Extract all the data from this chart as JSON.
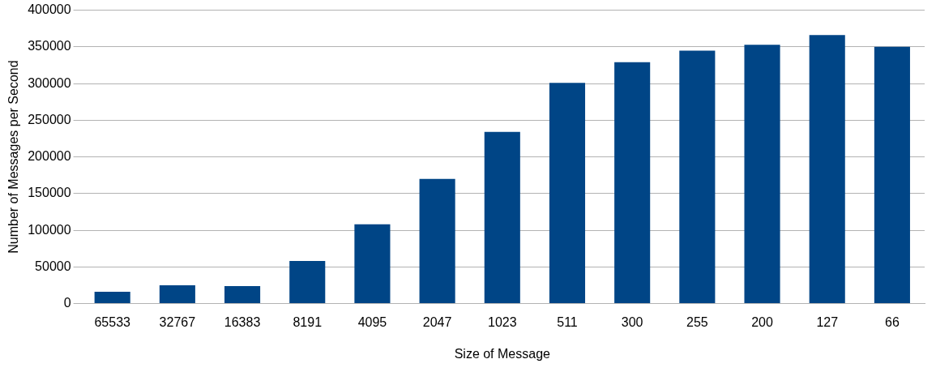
{
  "chart_data": {
    "type": "bar",
    "xlabel": "Size of Message",
    "ylabel": "Number of Messages per Second",
    "categories": [
      "65533",
      "32767",
      "16383",
      "8191",
      "4095",
      "2047",
      "1023",
      "511",
      "300",
      "255",
      "200",
      "127",
      "66"
    ],
    "values": [
      16000,
      25000,
      24000,
      58000,
      108000,
      170000,
      234000,
      301000,
      329000,
      345000,
      353000,
      366000,
      350000
    ],
    "color": "#004586",
    "ylim": [
      0,
      400000
    ],
    "yticks": [
      0,
      50000,
      100000,
      150000,
      200000,
      250000,
      300000,
      350000,
      400000
    ],
    "grid": "y",
    "legend": false
  }
}
